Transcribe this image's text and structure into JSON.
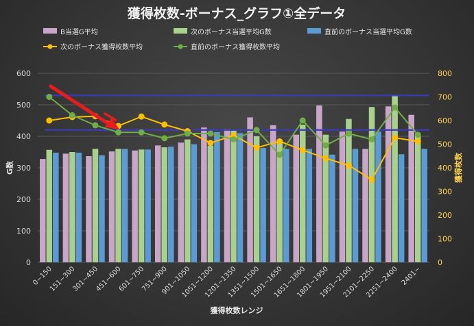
{
  "chart_data": {
    "type": "bar+line",
    "title": "獲得枚数-ボーナス_グラフ①全データ",
    "xlabel": "獲得枚数レンジ",
    "ylabel": "G数",
    "y2label": "獲得枚数",
    "ylim": [
      0,
      600
    ],
    "y2lim": [
      0,
      800
    ],
    "yticks": [
      0,
      100,
      200,
      300,
      400,
      500,
      600
    ],
    "y2ticks": [
      0,
      100,
      200,
      300,
      400,
      500,
      600,
      700,
      800
    ],
    "grid": true,
    "legend_position": "top",
    "categories": [
      "0~150",
      "151~300",
      "301~450",
      "451~600",
      "601~750",
      "751~900",
      "901~1050",
      "1051~1200",
      "1201~1350",
      "1351~1500",
      "1501~1650",
      "1651~1800",
      "1801~1950",
      "1951~2100",
      "2101~2250",
      "2251~2400",
      "2401~"
    ],
    "bar_series": [
      {
        "name": "B当選G平均",
        "color": "#c9a6c9",
        "values": [
          328,
          345,
          337,
          352,
          355,
          371,
          380,
          428,
          423,
          460,
          435,
          405,
          498,
          415,
          360,
          495,
          468
        ]
      },
      {
        "name": "次のボーナス当選平均G数",
        "color": "#a9d18e",
        "values": [
          357,
          350,
          360,
          360,
          358,
          365,
          390,
          370,
          420,
          400,
          380,
          437,
          405,
          455,
          493,
          530,
          405
        ]
      },
      {
        "name": "直前のボーナス当選平均G数",
        "color": "#5b9bd5",
        "values": [
          348,
          348,
          340,
          360,
          358,
          367,
          375,
          413,
          410,
          363,
          360,
          360,
          342,
          360,
          415,
          343,
          360
        ]
      }
    ],
    "line_series": [
      {
        "name": "次のボーナス獲得枚数平均",
        "color": "#ffc000",
        "axis": "right",
        "values": [
          600,
          615,
          618,
          577,
          617,
          583,
          555,
          505,
          537,
          485,
          512,
          475,
          440,
          410,
          350,
          527,
          512
        ]
      },
      {
        "name": "直前のボーナス獲得枚数平均",
        "color": "#70ad47",
        "axis": "right",
        "values": [
          700,
          622,
          580,
          550,
          550,
          525,
          545,
          545,
          520,
          560,
          455,
          600,
          495,
          545,
          520,
          655,
          540
        ]
      }
    ],
    "reference_lines": [
      {
        "axis": "left",
        "value": 530,
        "color": "#3b3bb8"
      },
      {
        "axis": "left",
        "value": 420,
        "color": "#3b3bb8"
      }
    ],
    "annotations": [
      {
        "type": "arrow",
        "color": "#e81c1c",
        "points_to_category": "451~600"
      }
    ]
  }
}
